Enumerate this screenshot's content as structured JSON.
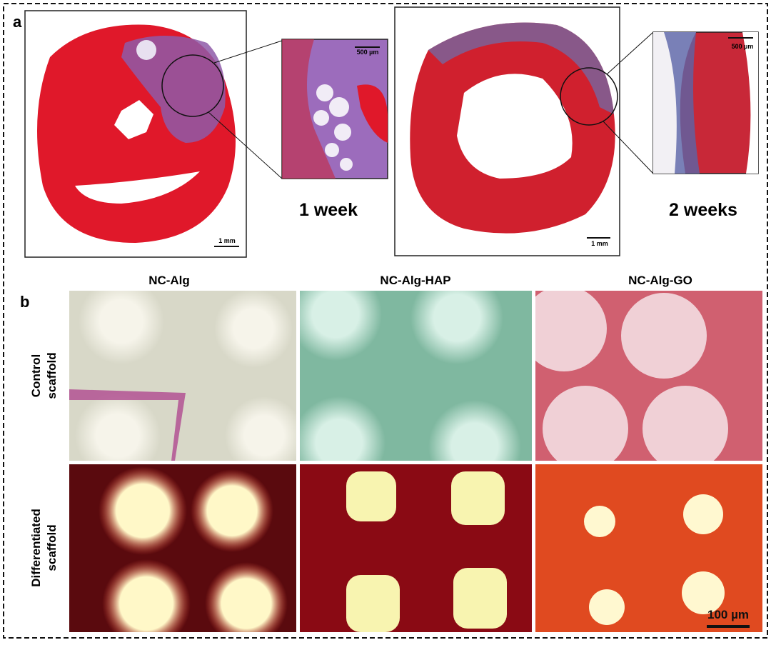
{
  "panel_a": {
    "label": "a",
    "samples": [
      {
        "caption": "1 week",
        "zoom_scale": "500 µm",
        "overview_scale": "1 mm"
      },
      {
        "caption": "2 weeks",
        "zoom_scale": "500 µm",
        "overview_scale": "1 mm"
      }
    ]
  },
  "panel_b": {
    "label": "b",
    "columns": [
      "NC-Alg",
      "NC-Alg-HAP",
      "NC-Alg-GO"
    ],
    "rows": [
      [
        "Control",
        "scaffold"
      ],
      [
        "Differentiated",
        "scaffold"
      ]
    ],
    "scale_bar": "100 µm"
  }
}
